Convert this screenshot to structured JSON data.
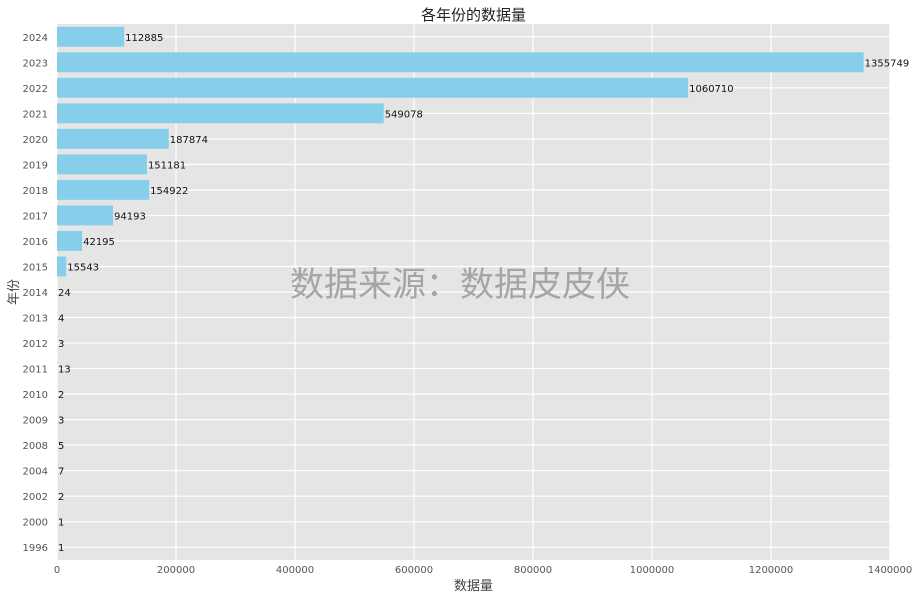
{
  "chart_data": {
    "type": "bar",
    "orientation": "horizontal",
    "title": "各年份的数据量",
    "xlabel": "数据量",
    "ylabel": "年份",
    "watermark": "数据来源：数据皮皮侠",
    "categories": [
      "1996",
      "2000",
      "2002",
      "2004",
      "2008",
      "2009",
      "2010",
      "2011",
      "2012",
      "2013",
      "2014",
      "2015",
      "2016",
      "2017",
      "2018",
      "2019",
      "2020",
      "2021",
      "2022",
      "2023",
      "2024"
    ],
    "values": [
      1,
      1,
      2,
      7,
      5,
      3,
      2,
      13,
      3,
      4,
      24,
      15543,
      42195,
      94193,
      154922,
      151181,
      187874,
      549078,
      1060710,
      1355749,
      112885
    ],
    "xlim": [
      0,
      1400000
    ],
    "xticks": [
      0,
      200000,
      400000,
      600000,
      800000,
      1000000,
      1200000,
      1400000
    ],
    "grid": true,
    "bar_color": "#87CEEB",
    "background_color": "#E5E5E5"
  }
}
